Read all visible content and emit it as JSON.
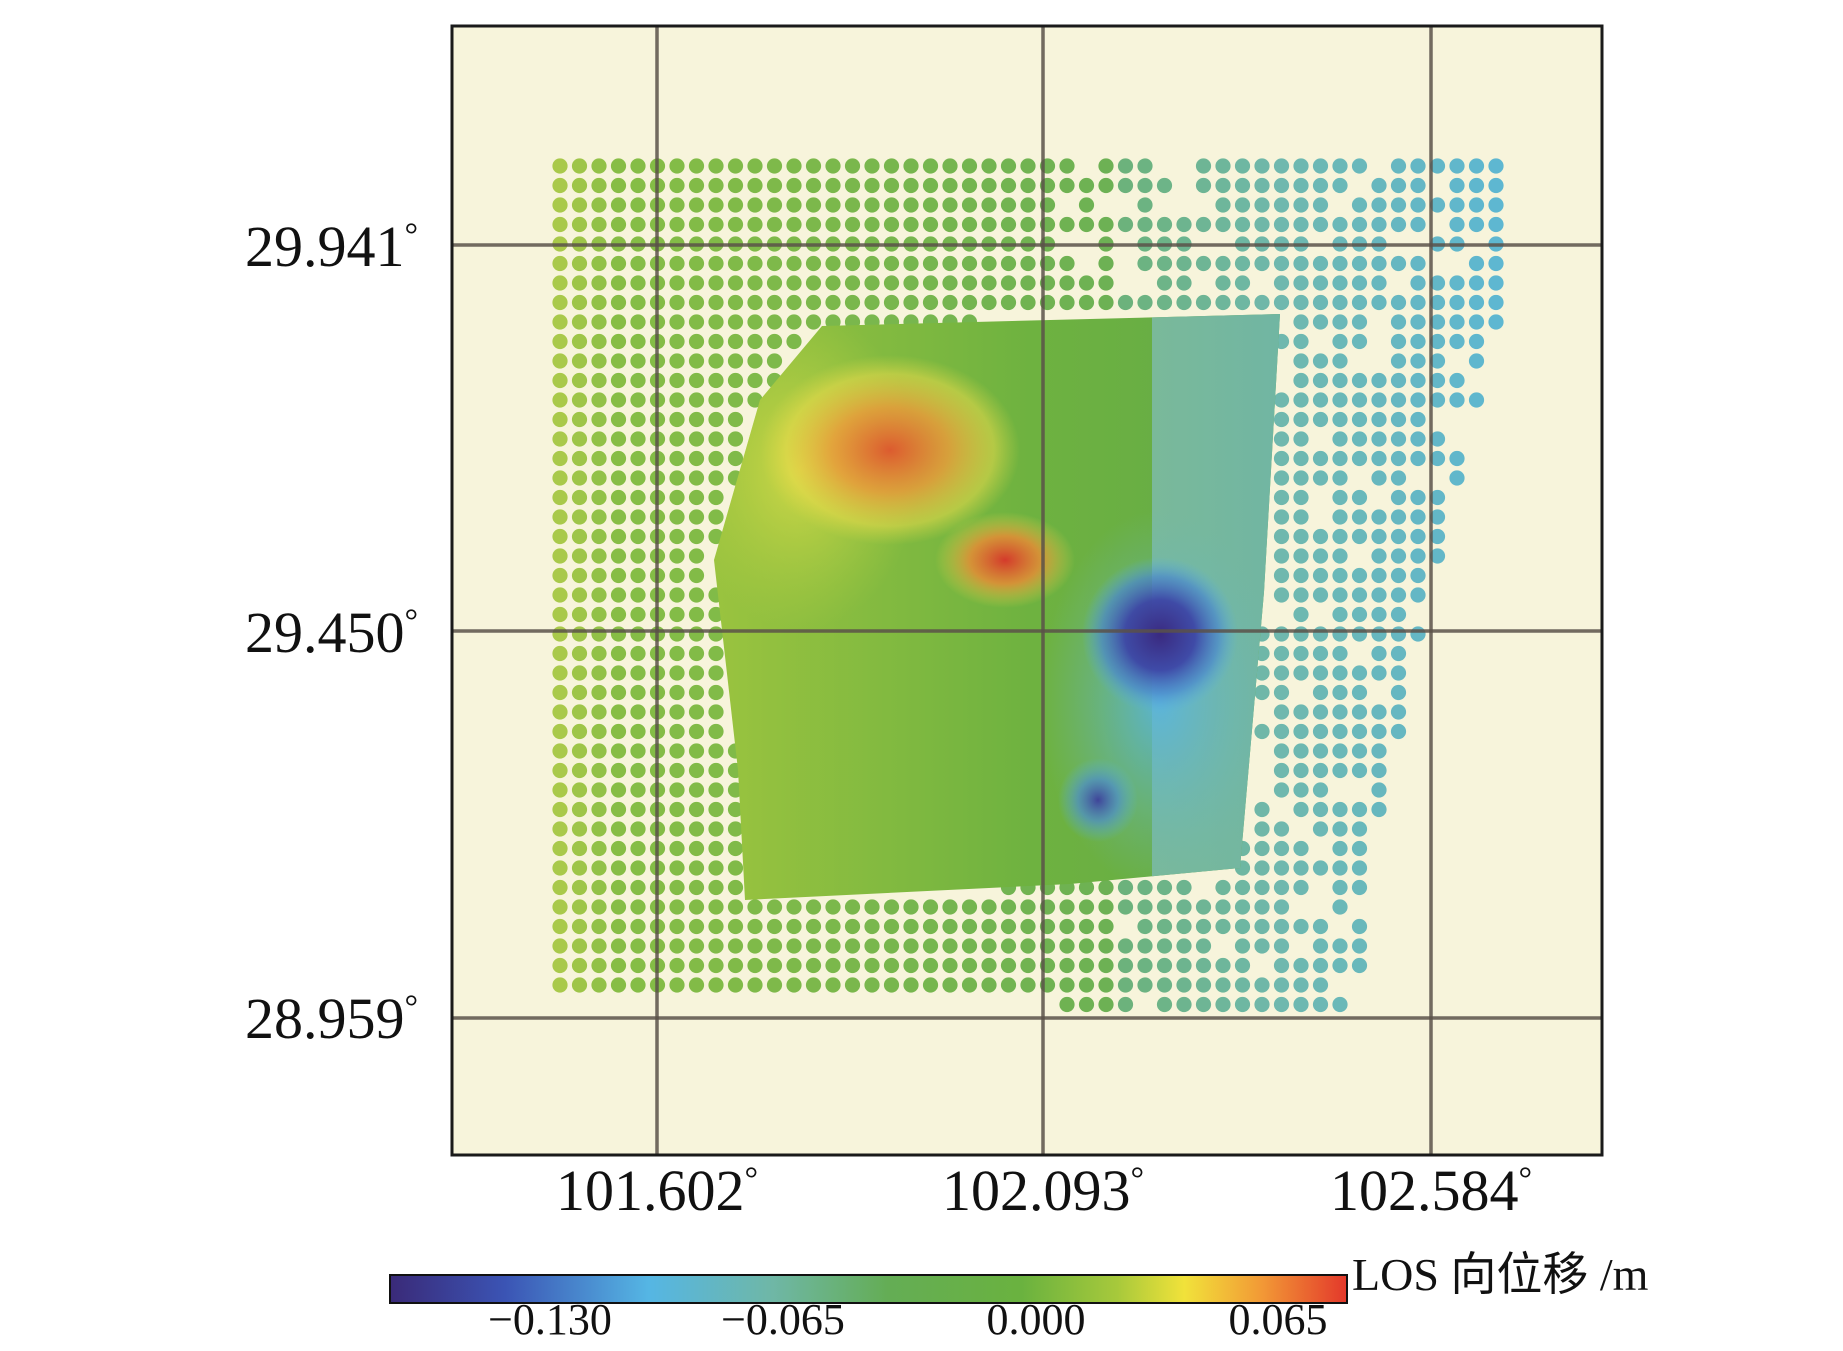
{
  "map": {
    "y_axis_labels": [
      "29.941",
      "29.450",
      "28.959"
    ],
    "x_axis_labels": [
      "101.602",
      "102.093",
      "102.584"
    ],
    "degree_symbol": "°",
    "colors": {
      "background": "#f7f4db",
      "grid": "#5a5149",
      "frame": "#1a1a1a"
    },
    "layers": [
      "point-grid-displacement",
      "insar-raster-displacement",
      "graticule"
    ]
  },
  "colorbar": {
    "title": "LOS 向位移 /m",
    "tick_labels": [
      "−0.130",
      "−0.065",
      "0.000",
      "0.065"
    ],
    "range": [
      -0.17,
      0.085
    ],
    "colormap": [
      "#3a2a78",
      "#3b54b4",
      "#55b6e4",
      "#6fb7a6",
      "#64ad55",
      "#6ab23f",
      "#a7c93b",
      "#f1e23a",
      "#f29a36",
      "#e3382b"
    ]
  }
}
